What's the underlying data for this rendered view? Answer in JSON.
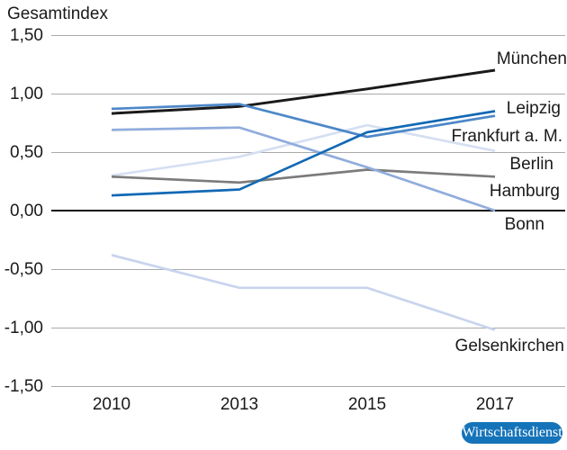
{
  "chart_data": {
    "type": "line",
    "title": "Gesamtindex",
    "categories": [
      "2010",
      "2013",
      "2015",
      "2017"
    ],
    "series": [
      {
        "name": "Gelsenkirchen",
        "color": "#c8d4ee",
        "values": [
          -0.38,
          -0.66,
          -0.66,
          -1.02
        ]
      },
      {
        "name": "Berlin",
        "color": "#d5dff2",
        "values": [
          0.3,
          0.46,
          0.73,
          0.51
        ]
      },
      {
        "name": "Hamburg",
        "color": "#7b7b7b",
        "values": [
          0.29,
          0.24,
          0.35,
          0.29
        ]
      },
      {
        "name": "Bonn",
        "color": "#90acdc",
        "values": [
          0.69,
          0.71,
          0.37,
          0.0
        ]
      },
      {
        "name": "München",
        "color": "#1a1a1a",
        "values": [
          0.83,
          0.89,
          1.04,
          1.2
        ]
      },
      {
        "name": "Frankfurt a. M.",
        "color": "#4d87c8",
        "values": [
          0.87,
          0.91,
          0.63,
          0.81
        ]
      },
      {
        "name": "Leipzig",
        "color": "#1269b4",
        "values": [
          0.13,
          0.18,
          0.67,
          0.85
        ]
      }
    ],
    "ylim": [
      -1.5,
      1.5
    ],
    "ytick_step": 0.5,
    "yticks": [
      {
        "value": 1.5,
        "label": "1,50"
      },
      {
        "value": 1.0,
        "label": "1,00"
      },
      {
        "value": 0.5,
        "label": "0,50"
      },
      {
        "value": 0.0,
        "label": "0,00"
      },
      {
        "value": -0.5,
        "label": "-0,50"
      },
      {
        "value": -1.0,
        "label": "-1,00"
      },
      {
        "value": -1.5,
        "label": "-1,50"
      }
    ],
    "grid": "horizontal, zero line emphasized in black",
    "legend_position": "labels at right end of each line",
    "colors": {
      "grid": "#aaaaaa",
      "zero_axis": "#111111",
      "text": "#1a1a1a"
    }
  },
  "badge": {
    "label": "Wirtschaftsdienst",
    "background": "#1573b9",
    "text_color": "#ffffff"
  }
}
